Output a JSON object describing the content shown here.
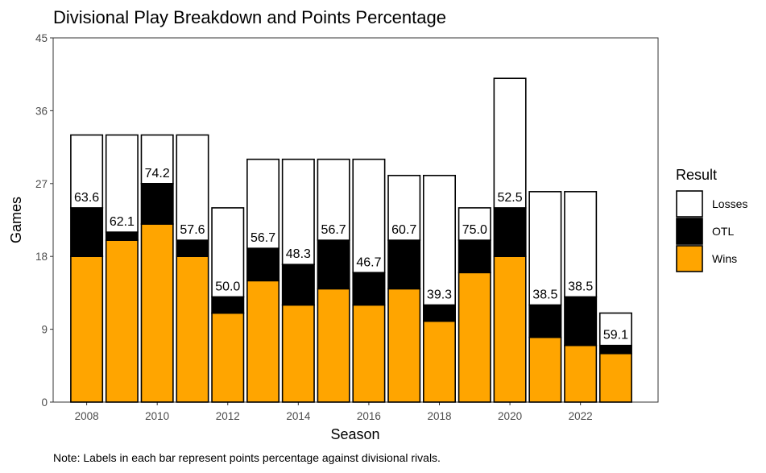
{
  "chart_data": {
    "type": "bar",
    "stacked": true,
    "title": "Divisional Play Breakdown and Points Percentage",
    "xlabel": "Season",
    "ylabel": "Games",
    "caption": "Note: Labels in each bar represent points percentage against divisional rivals.",
    "x": [
      2008,
      2009,
      2010,
      2011,
      2012,
      2013,
      2014,
      2015,
      2016,
      2017,
      2018,
      2019,
      2020,
      2021,
      2022,
      2023
    ],
    "x_ticks": [
      "2008",
      "2010",
      "2012",
      "2014",
      "2016",
      "2018",
      "2020",
      "2022"
    ],
    "x_tick_values": [
      2008,
      2010,
      2012,
      2014,
      2016,
      2018,
      2020,
      2022
    ],
    "y_ticks": [
      "0",
      "9",
      "18",
      "27",
      "36",
      "45"
    ],
    "y_tick_values": [
      0,
      9,
      18,
      27,
      36,
      45
    ],
    "ylim": [
      0,
      45
    ],
    "xlim": [
      2007.05,
      2024.2
    ],
    "series": [
      {
        "name": "Wins",
        "color": "#FFA500",
        "values": [
          18,
          20,
          22,
          18,
          11,
          15,
          12,
          14,
          12,
          14,
          10,
          16,
          18,
          8,
          7,
          6
        ]
      },
      {
        "name": "OTL",
        "color": "#000000",
        "values": [
          6,
          1,
          5,
          2,
          2,
          4,
          5,
          6,
          4,
          6,
          2,
          4,
          6,
          4,
          6,
          1
        ]
      },
      {
        "name": "Losses",
        "color": "#FFFFFF",
        "values": [
          9,
          12,
          6,
          13,
          11,
          11,
          13,
          10,
          14,
          8,
          16,
          4,
          16,
          14,
          13,
          4
        ]
      }
    ],
    "labels": [
      "63.6",
      "62.1",
      "74.2",
      "57.6",
      "50.0",
      "56.7",
      "48.3",
      "56.7",
      "46.7",
      "60.7",
      "39.3",
      "75.0",
      "52.5",
      "38.5",
      "38.5",
      "59.1"
    ],
    "legend": {
      "title": "Result",
      "position": "right",
      "entries": [
        {
          "name": "Losses",
          "color": "#FFFFFF"
        },
        {
          "name": "OTL",
          "color": "#000000"
        },
        {
          "name": "Wins",
          "color": "#FFA500"
        }
      ]
    },
    "grid": false
  }
}
